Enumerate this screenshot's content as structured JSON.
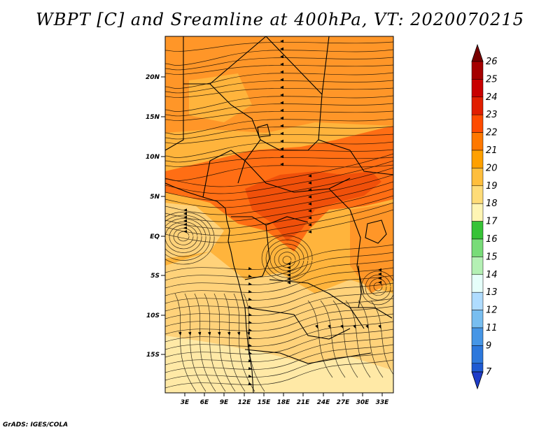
{
  "title": "WBPT [C] and Sreamline at 400hPa, VT: 2020070215",
  "credit": "GrADS: IGES/COLA",
  "axes": {
    "lon_labels": [
      "3E",
      "6E",
      "9E",
      "12E",
      "15E",
      "18E",
      "21E",
      "24E",
      "27E",
      "30E",
      "33E"
    ],
    "lat_labels": [
      "20N",
      "15N",
      "10N",
      "5N",
      "EQ",
      "5S",
      "10S",
      "15S"
    ]
  },
  "colorbar": {
    "labels": [
      "26",
      "25",
      "24",
      "23",
      "22",
      "21",
      "20",
      "19",
      "18",
      "17",
      "16",
      "15",
      "14",
      "13",
      "12",
      "11",
      "9",
      "7"
    ],
    "colors": [
      "#a50000",
      "#c80000",
      "#e11e00",
      "#ff4b00",
      "#ff7800",
      "#ffa000",
      "#ffbe3c",
      "#ffdc78",
      "#fff5b4",
      "#37c337",
      "#78dc78",
      "#b4f0b4",
      "#e6fffa",
      "#afdcff",
      "#78bef0",
      "#4696e6",
      "#2d78dc",
      "#1e5ad2"
    ],
    "top_color": "#780000",
    "bottom_color": "#1e3cc8"
  },
  "field_colors": {
    "c19": "#ffe9a6",
    "c20": "#ffd27a",
    "c21": "#ffb43c",
    "c22": "#ff9628",
    "c23": "#ff6e14",
    "c24": "#f0500a"
  },
  "line_color": "#000000"
}
